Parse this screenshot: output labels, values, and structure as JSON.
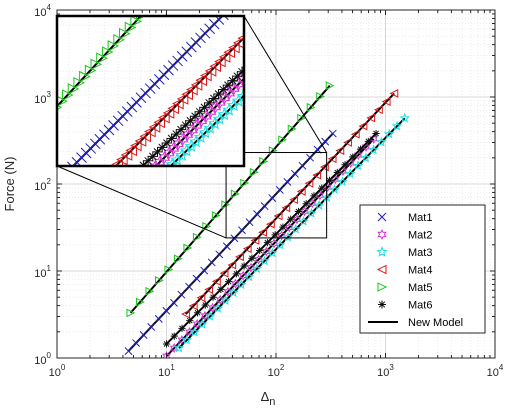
{
  "chart_data": {
    "type": "scatter",
    "xlabel": "Δ",
    "xlabel_subscript": "n",
    "ylabel": "Force (N)",
    "xscale": "log",
    "yscale": "log",
    "xlim": [
      1,
      10000
    ],
    "ylim": [
      1,
      10000
    ],
    "x_ticks": [
      1,
      10,
      100,
      1000,
      10000
    ],
    "x_tick_labels": [
      {
        "base": "10",
        "exp": "0"
      },
      {
        "base": "10",
        "exp": "1"
      },
      {
        "base": "10",
        "exp": "2"
      },
      {
        "base": "10",
        "exp": "3"
      },
      {
        "base": "10",
        "exp": "4"
      }
    ],
    "y_ticks": [
      1,
      10,
      100,
      1000,
      10000
    ],
    "y_tick_labels": [
      {
        "base": "10",
        "exp": "0"
      },
      {
        "base": "10",
        "exp": "1"
      },
      {
        "base": "10",
        "exp": "2"
      },
      {
        "base": "10",
        "exp": "3"
      },
      {
        "base": "10",
        "exp": "4"
      }
    ],
    "grid": true,
    "legend_position": "bottom-right",
    "inset": {
      "zoom_x": [
        35,
        290
      ],
      "zoom_y": [
        24,
        230
      ],
      "position": "top-left"
    },
    "series": [
      {
        "name": "Mat1",
        "marker": "x",
        "color": "#1f1fbf",
        "x_start": 4.5,
        "x_end": 330,
        "y_start": 1.2,
        "y_end": 380,
        "points": 28
      },
      {
        "name": "Mat2",
        "marker": "hexagram",
        "color": "#d633d6",
        "x_start": 10,
        "x_end": 780,
        "y_start": 1.05,
        "y_end": 330,
        "points": 28
      },
      {
        "name": "Mat3",
        "marker": "pentagram",
        "color": "#1ee0e0",
        "x_start": 13,
        "x_end": 1500,
        "y_start": 1.3,
        "y_end": 570,
        "points": 30
      },
      {
        "name": "Mat4",
        "marker": "triangle-left",
        "color": "#e01515",
        "x_start": 15,
        "x_end": 1200,
        "y_start": 3.2,
        "y_end": 1100,
        "points": 28
      },
      {
        "name": "Mat5",
        "marker": "triangle-right",
        "color": "#19c719",
        "x_start": 4.7,
        "x_end": 310,
        "y_start": 3.3,
        "y_end": 1350,
        "points": 22
      },
      {
        "name": "Mat6",
        "marker": "asterisk",
        "color": "#111111",
        "x_start": 10,
        "x_end": 820,
        "y_start": 1.45,
        "y_end": 380,
        "points": 28
      }
    ],
    "model_line": {
      "name": "New Model",
      "color": "#000000"
    }
  }
}
